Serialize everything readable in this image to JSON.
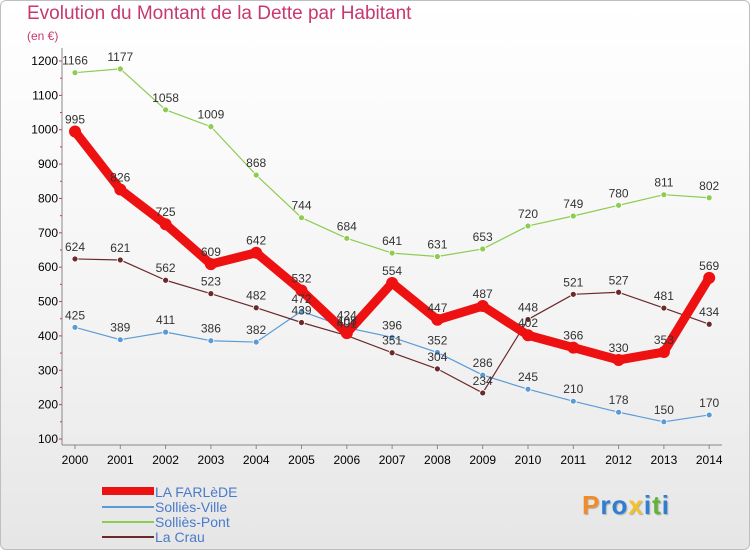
{
  "chart_data": {
    "type": "line",
    "title": "Evolution du Montant de la Dette par Habitant",
    "unit_label": "(en €)",
    "x": [
      "2000",
      "2001",
      "2002",
      "2003",
      "2004",
      "2005",
      "2006",
      "2007",
      "2008",
      "2009",
      "2010",
      "2011",
      "2012",
      "2013",
      "2014"
    ],
    "ylim": [
      100,
      1200
    ],
    "yticks": [
      100,
      200,
      300,
      400,
      500,
      600,
      700,
      800,
      900,
      1000,
      1100,
      1200
    ],
    "grid": false,
    "legend_position": "bottom-left",
    "series": [
      {
        "name": "LA FARLèDE",
        "color": "#ee1111",
        "values": [
          995,
          826,
          725,
          609,
          642,
          532,
          408,
          554,
          447,
          487,
          402,
          366,
          330,
          353,
          569
        ]
      },
      {
        "name": "Solliès-Ville",
        "color": "#5b9bd5",
        "values": [
          425,
          389,
          411,
          386,
          382,
          472,
          424,
          396,
          352,
          286,
          245,
          210,
          178,
          150,
          170
        ]
      },
      {
        "name": "Solliès-Pont",
        "color": "#8ccc50",
        "values": [
          1166,
          1177,
          1058,
          1009,
          868,
          744,
          684,
          641,
          631,
          653,
          720,
          749,
          780,
          811,
          802
        ]
      },
      {
        "name": "La Crau",
        "color": "#6b2a2a",
        "values": [
          624,
          621,
          562,
          523,
          482,
          439,
          401,
          351,
          304,
          234,
          448,
          521,
          527,
          481,
          434
        ]
      }
    ]
  },
  "logo": {
    "letters": [
      "P",
      "r",
      "o",
      "x",
      "i",
      "t",
      "i"
    ],
    "colors": [
      "#f28c28",
      "#2e7fd1",
      "#2e7fd1",
      "#f2c12e",
      "#2e7fd1",
      "#62b33a",
      "#2e7fd1"
    ]
  }
}
